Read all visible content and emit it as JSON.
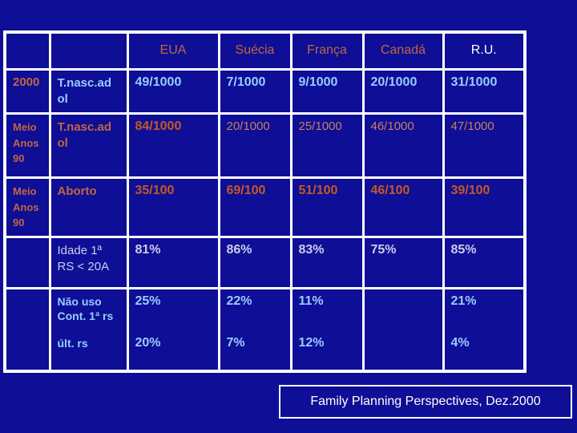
{
  "chart_data": {
    "type": "table",
    "columns": [
      "",
      "",
      "EUA",
      "Suécia",
      "França",
      "Canadá",
      "R.U."
    ],
    "rows": [
      [
        "2000",
        "T.nasc.adol",
        "49/1000",
        "7/1000",
        "9/1000",
        "20/1000",
        "31/1000"
      ],
      [
        "Meio Anos 90",
        "T.nasc.adol",
        "84/1000",
        "20/1000",
        "25/1000",
        "46/1000",
        "47/1000"
      ],
      [
        "Meio Anos 90",
        "Aborto",
        "35/100",
        "69/100",
        "51/100",
        "46/100",
        "39/100"
      ],
      [
        "",
        "Idade 1ª RS < 20A",
        "81%",
        "86%",
        "83%",
        "75%",
        "85%"
      ],
      [
        "",
        "Não uso Cont. 1ª rs",
        "25%",
        "22%",
        "11%",
        "",
        "21%"
      ],
      [
        "",
        "últ. rs",
        "20%",
        "7%",
        "12%",
        "",
        "4%"
      ]
    ],
    "source": "Family Planning Perspectives, Dez.2000",
    "legend_position": "none",
    "grid": "white lines on dark blue"
  },
  "display": {
    "tnasc_wrapped": "T.nasc.ad\nol",
    "meio_wrapped": "Meio\nAnos\n90",
    "idade_wrapped": "Idade 1ª\nRS < 20A",
    "nao_uso_wrapped": "Não uso\nCont. 1ª rs"
  },
  "colors": {
    "background": "#0e0e96",
    "grid": "#ffffff",
    "header_orange": "#c2663f",
    "value_orange_bold": "#c35a22",
    "value_orange_regular": "#c9815c",
    "light_blue": "#99ccff",
    "lavender": "#cdcde8",
    "white": "#ffffff"
  }
}
